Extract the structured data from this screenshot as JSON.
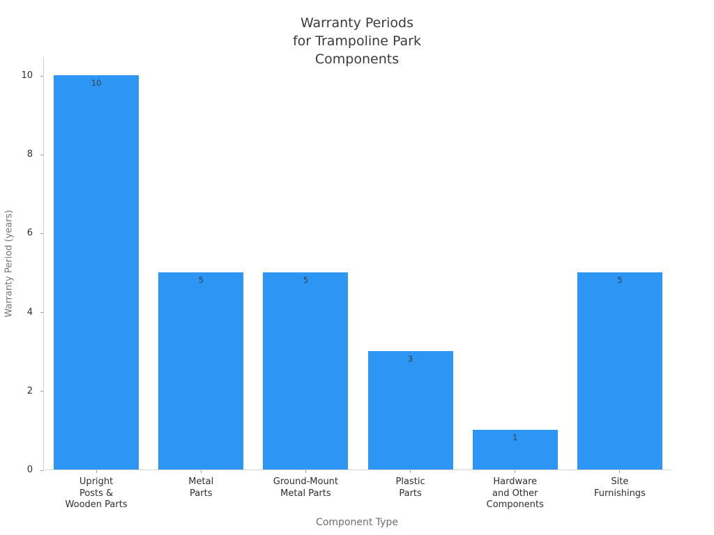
{
  "chart_data": {
    "type": "bar",
    "title": "Warranty Periods\nfor Trampoline Park\nComponents",
    "xlabel": "Component Type",
    "ylabel": "Warranty Period (years)",
    "categories": [
      "Upright\nPosts &\nWooden Parts",
      "Metal\nParts",
      "Ground-Mount\nMetal Parts",
      "Plastic\nParts",
      "Hardware\nand Other\nComponents",
      "Site\nFurnishings"
    ],
    "values": [
      10,
      5,
      5,
      3,
      1,
      5
    ],
    "value_labels": [
      "10",
      "5",
      "5",
      "3",
      "1",
      "5"
    ],
    "yticks": [
      0,
      2,
      4,
      6,
      8,
      10
    ],
    "ylim": [
      0,
      10
    ],
    "bar_color": "#2d96f5",
    "grid": false,
    "legend": "none",
    "background_color": "#ffffff"
  }
}
